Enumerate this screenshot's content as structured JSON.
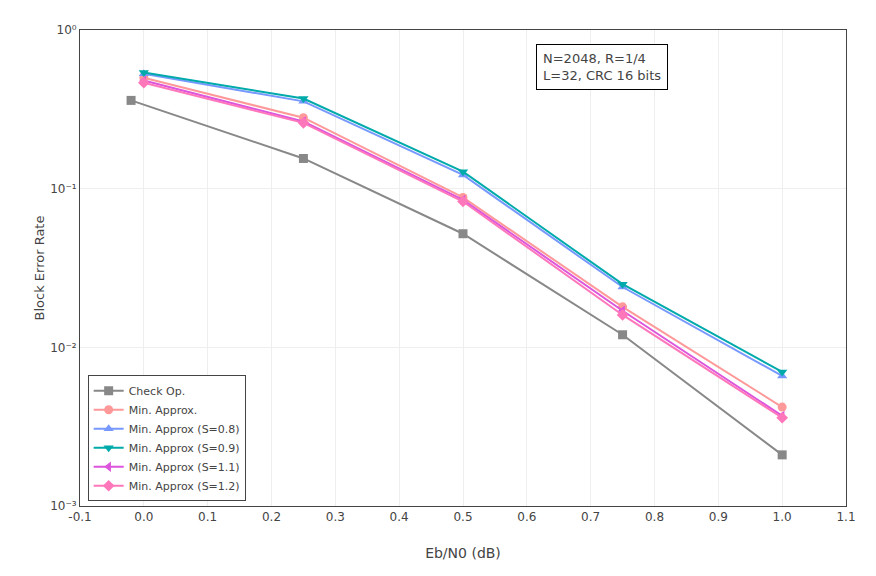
{
  "chart_data": {
    "type": "line",
    "xlabel": "Eb/N0 (dB)",
    "ylabel": "Block Error Rate",
    "annotation": "N=2048, R=1/4\nL=32, CRC 16 bits",
    "log": "y",
    "grid": true,
    "legend": "lower left",
    "xlim": [
      -0.1,
      1.1
    ],
    "ylim": [
      0.001,
      1.0
    ],
    "xticks": [
      -0.1,
      {
        "value": 0.0,
        "label": "0.0"
      },
      0.1,
      0.2,
      0.3,
      0.4,
      0.5,
      0.6,
      0.7,
      0.8,
      0.9,
      {
        "value": 1.0,
        "label": "1.0"
      },
      1.1
    ],
    "yticks": [
      {
        "value": 0.001,
        "label": "10⁻³"
      },
      {
        "value": 0.01,
        "label": "10⁻²"
      },
      {
        "value": 0.1,
        "label": "10⁻¹"
      },
      {
        "value": 1.0,
        "label": "10⁰"
      }
    ],
    "series": [
      {
        "name": "Check Op.",
        "color": "#888888",
        "marker": "square",
        "line_style": "solid",
        "x": [
          -0.02,
          0.25,
          0.5,
          0.75,
          1.0
        ],
        "values": [
          0.36,
          0.155,
          0.052,
          0.012,
          0.0021
        ]
      },
      {
        "name": "Min. Approx.",
        "color": "#FF9999",
        "marker": "circle",
        "line_style": "solid",
        "x": [
          0.0,
          0.25,
          0.5,
          0.75,
          1.0
        ],
        "values": [
          0.5,
          0.28,
          0.088,
          0.018,
          0.0042
        ]
      },
      {
        "name": "Min. Approx (S=0.8)",
        "color": "#7799FF",
        "marker": "triangle-up",
        "line_style": "solid",
        "x": [
          0.0,
          0.25,
          0.5,
          0.75,
          1.0
        ],
        "values": [
          0.53,
          0.355,
          0.122,
          0.024,
          0.0066
        ]
      },
      {
        "name": "Min. Approx (S=0.9)",
        "color": "#00AAAA",
        "marker": "triangle-down",
        "line_style": "solid",
        "x": [
          0.0,
          0.25,
          0.5,
          0.75,
          1.0
        ],
        "values": [
          0.54,
          0.37,
          0.128,
          0.025,
          0.007
        ]
      },
      {
        "name": "Min. Approx (S=1.1)",
        "color": "#DD55DD",
        "marker": "triangle-left",
        "line_style": "solid",
        "x": [
          0.0,
          0.25,
          0.5,
          0.75,
          1.0
        ],
        "values": [
          0.48,
          0.265,
          0.085,
          0.017,
          0.0037
        ]
      },
      {
        "name": "Min. Approx (S=1.2)",
        "color": "#FF77BB",
        "marker": "diamond",
        "line_style": "solid",
        "x": [
          0.0,
          0.25,
          0.5,
          0.75,
          1.0
        ],
        "values": [
          0.465,
          0.26,
          0.083,
          0.016,
          0.0036
        ]
      }
    ]
  }
}
